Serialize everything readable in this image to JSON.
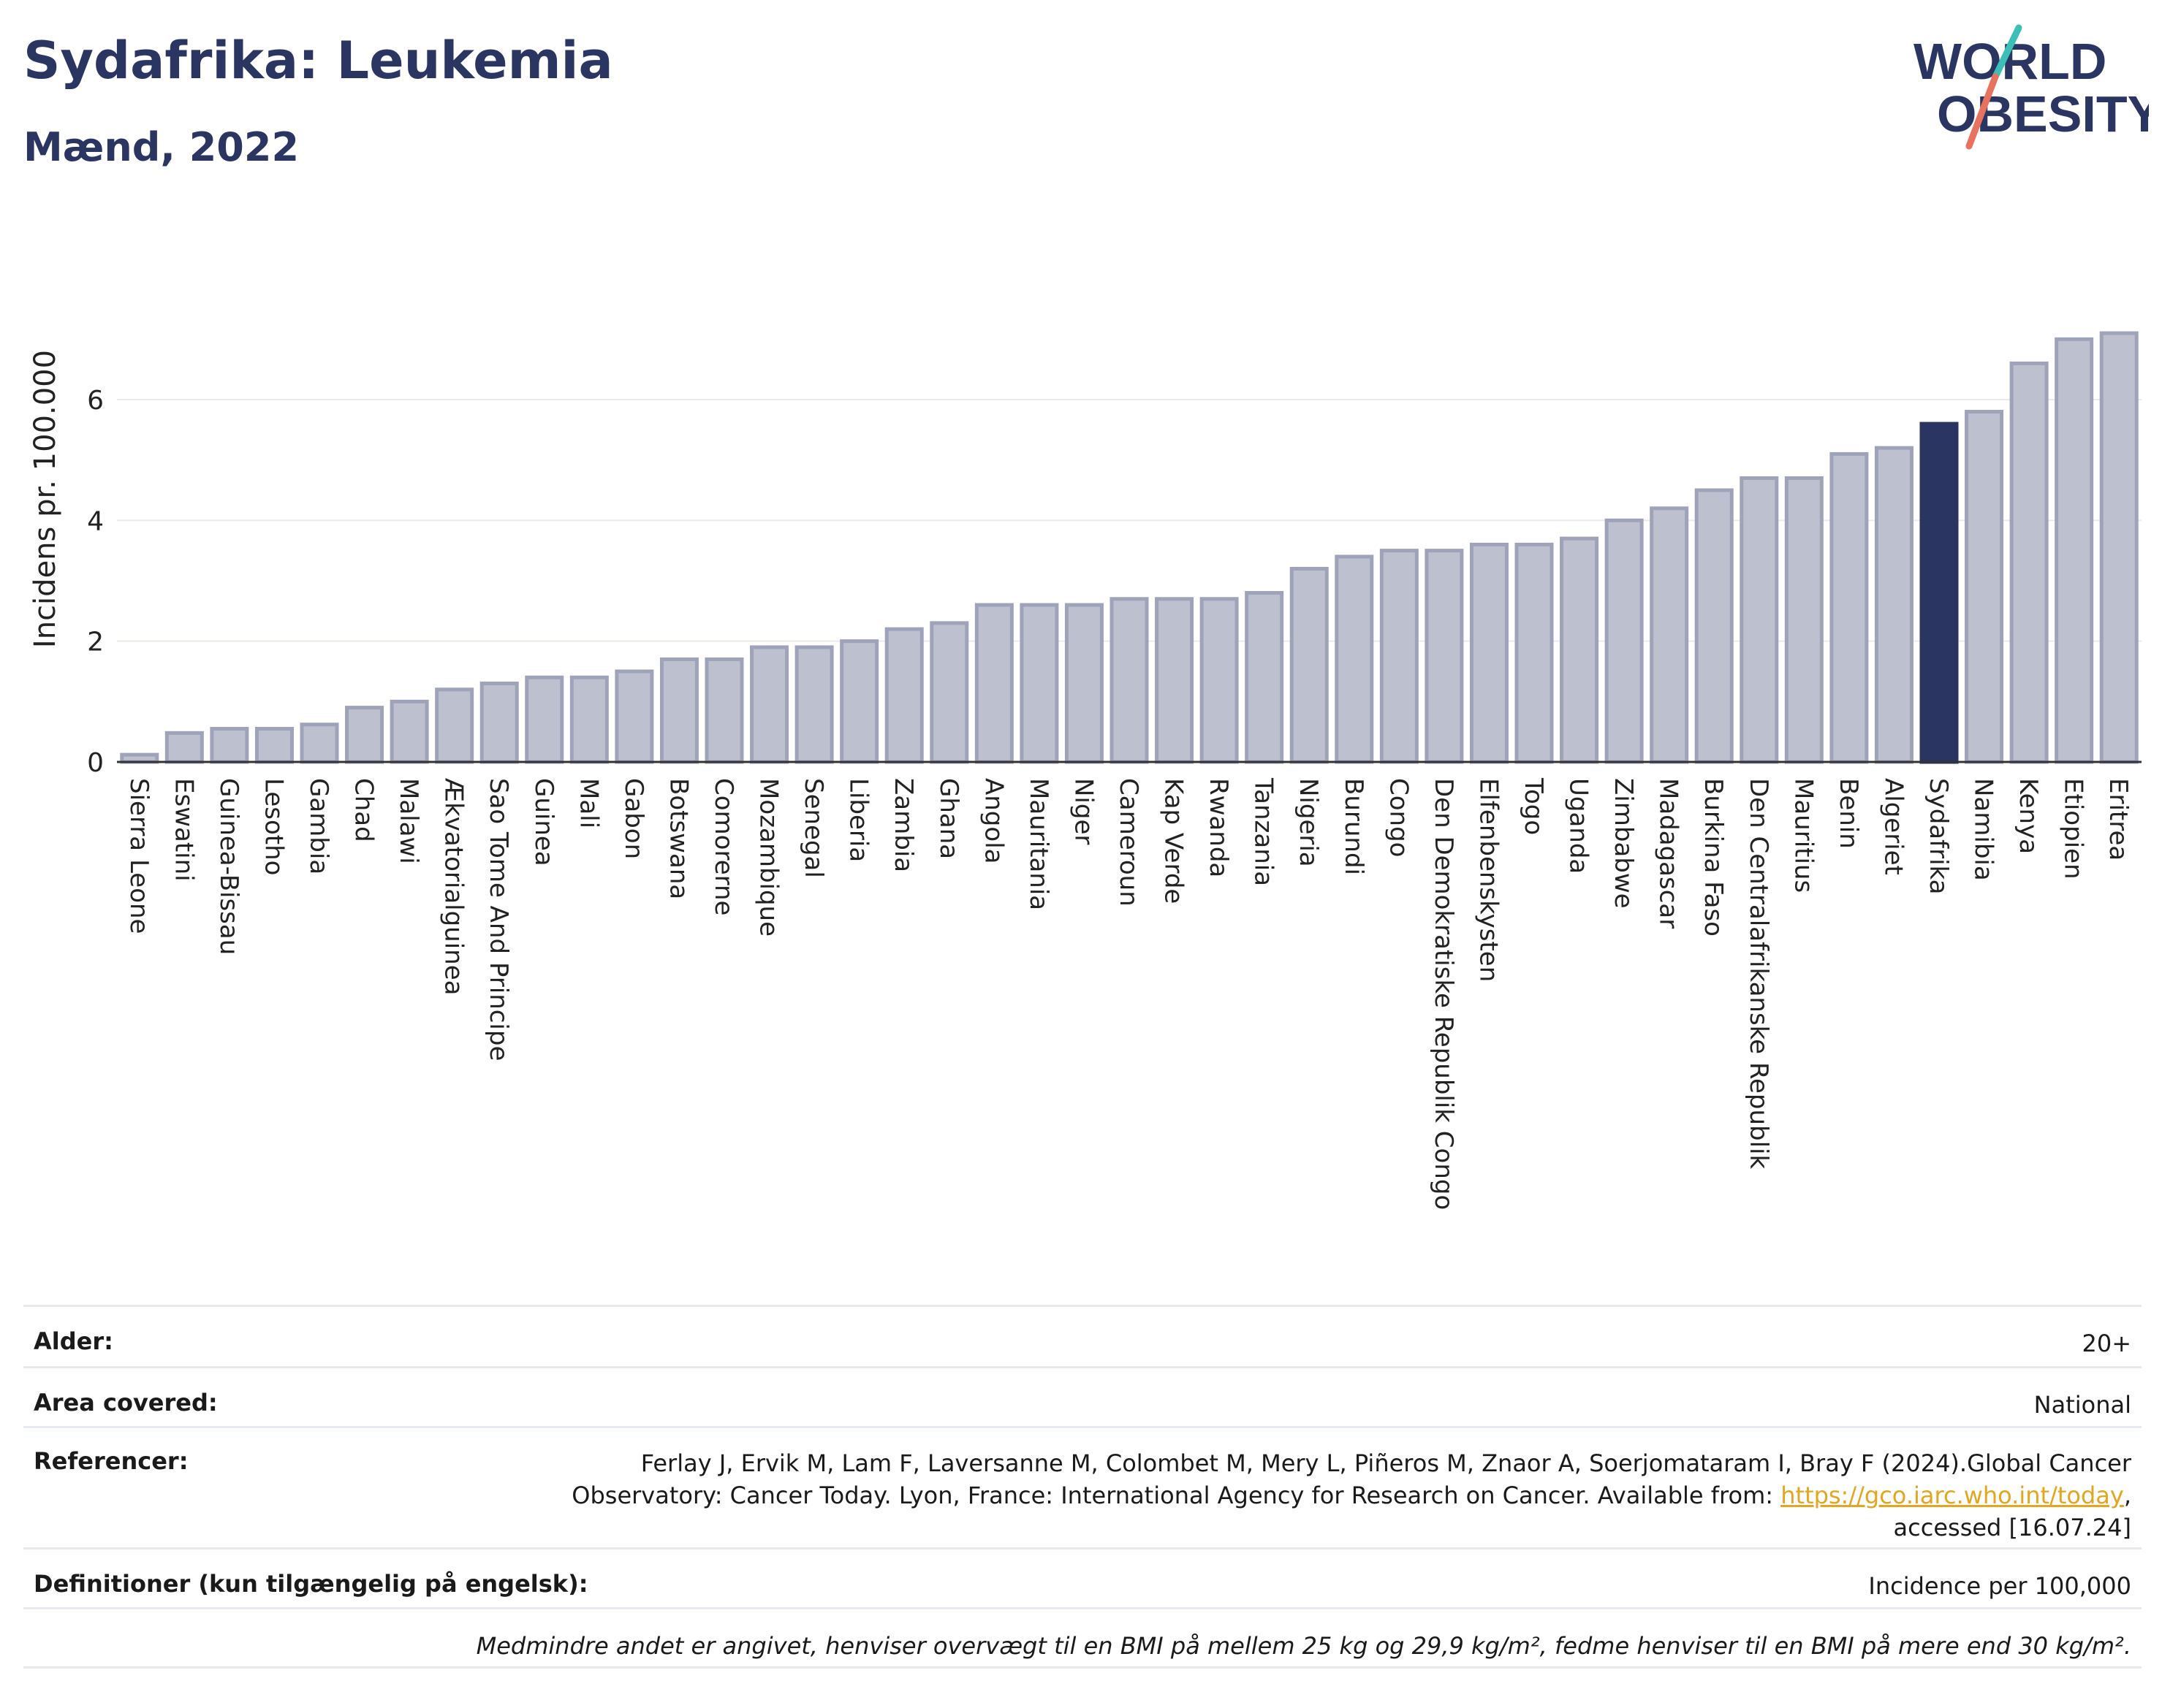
{
  "header": {
    "title": "Sydafrika: Leukemia",
    "subtitle": "Mænd, 2022",
    "logo_line1": "WORLD",
    "logo_line2": "OBESITY"
  },
  "colors": {
    "title": "#2b3561",
    "bar": "#bcc0cf",
    "bar_stroke": "#9ea3ba",
    "highlight": "#2b3561",
    "logo_teal": "#3bbfb6",
    "logo_coral": "#e8715f",
    "link": "#e4a51f"
  },
  "chart_data": {
    "type": "bar",
    "ylabel": "Incidens pr. 100.000",
    "ylim": [
      0,
      7.5
    ],
    "yticks": [
      0,
      2,
      4,
      6
    ],
    "grid": true,
    "highlight": "Sydafrika",
    "categories": [
      "Sierra Leone",
      "Eswatini",
      "Guinea-Bissau",
      "Lesotho",
      "Gambia",
      "Chad",
      "Malawi",
      "Ækvatorialguinea",
      "Sao Tome And Principe",
      "Guinea",
      "Mali",
      "Gabon",
      "Botswana",
      "Comorerne",
      "Mozambique",
      "Senegal",
      "Liberia",
      "Zambia",
      "Ghana",
      "Angola",
      "Mauritania",
      "Niger",
      "Cameroun",
      "Kap Verde",
      "Rwanda",
      "Tanzania",
      "Nigeria",
      "Burundi",
      "Congo",
      "Den Demokratiske Republik Congo",
      "Elfenbenskysten",
      "Togo",
      "Uganda",
      "Zimbabwe",
      "Madagascar",
      "Burkina Faso",
      "Den Centralafrikanske Republik",
      "Mauritius",
      "Benin",
      "Algeriet",
      "Sydafrika",
      "Namibia",
      "Kenya",
      "Etiopien",
      "Eritrea"
    ],
    "values": [
      0.12,
      0.48,
      0.55,
      0.55,
      0.62,
      0.9,
      1.0,
      1.2,
      1.3,
      1.4,
      1.4,
      1.5,
      1.7,
      1.7,
      1.9,
      1.9,
      2.0,
      2.2,
      2.3,
      2.6,
      2.6,
      2.6,
      2.7,
      2.7,
      2.7,
      2.8,
      3.2,
      3.4,
      3.5,
      3.5,
      3.6,
      3.6,
      3.7,
      4.0,
      4.2,
      4.5,
      4.7,
      4.7,
      5.1,
      5.2,
      5.6,
      5.8,
      6.6,
      7.0,
      7.1
    ]
  },
  "info": {
    "age_label": "Alder:",
    "age_value": "20+",
    "area_label": "Area covered:",
    "area_value": "National",
    "ref_label": "Referencer:",
    "ref_line1": "Ferlay J, Ervik M, Lam F, Laversanne M, Colombet M, Mery L, Piñeros M, Znaor A, Soerjomataram I, Bray F (2024).Global Cancer",
    "ref_line2": "Observatory: Cancer Today. Lyon, France: International Agency for Research on Cancer. Available from: ",
    "ref_link": "https://gco.iarc.who.int/today",
    "ref_line2_end": ",",
    "ref_line3": "accessed [16.07.24]",
    "def_label": "Definitioner (kun tilgængelig på engelsk):",
    "def_value": "Incidence per 100,000",
    "note": "Medmindre andet er angivet, henviser overvægt til en BMI på mellem 25 kg og 29,9 kg/m², fedme henviser til en BMI på mere end 30 kg/m²."
  }
}
